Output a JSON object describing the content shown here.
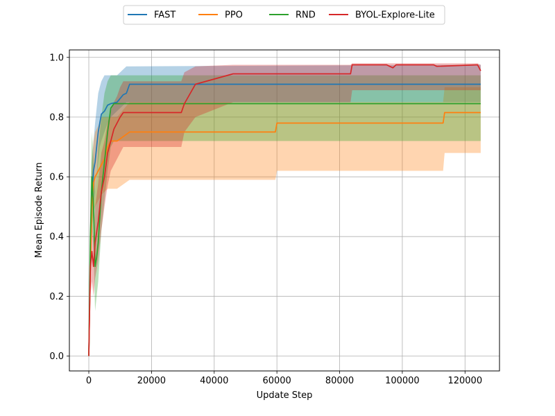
{
  "chart_data": {
    "type": "line",
    "title": "",
    "xlabel": "Update Step",
    "ylabel": "Mean Episode Return",
    "xlim": [
      -6200,
      131000
    ],
    "ylim": [
      -0.05,
      1.025
    ],
    "xticks": [
      0,
      20000,
      40000,
      60000,
      80000,
      100000,
      120000
    ],
    "xtick_labels": [
      "0",
      "20000",
      "40000",
      "60000",
      "80000",
      "100000",
      "120000"
    ],
    "yticks": [
      0.0,
      0.2,
      0.4,
      0.6,
      0.8,
      1.0
    ],
    "ytick_labels": [
      "0.0",
      "0.2",
      "0.4",
      "0.6",
      "0.8",
      "1.0"
    ],
    "grid": true,
    "legend_placement": "top-center",
    "series": [
      {
        "name": "FAST",
        "color": "#1f77b4",
        "x": [
          0,
          500,
          1000,
          1500,
          2000,
          2500,
          3000,
          3500,
          4000,
          5000,
          6000,
          7000,
          9000,
          11000,
          12000,
          13000,
          125000
        ],
        "y": [
          0.0,
          0.33,
          0.55,
          0.62,
          0.65,
          0.7,
          0.75,
          0.78,
          0.81,
          0.82,
          0.84,
          0.845,
          0.85,
          0.875,
          0.88,
          0.91,
          0.91
        ],
        "lower": [
          0.0,
          0.22,
          0.43,
          0.5,
          0.55,
          0.6,
          0.65,
          0.7,
          0.72,
          0.75,
          0.78,
          0.8,
          0.82,
          0.84,
          0.85,
          0.85,
          0.85
        ],
        "upper": [
          0.0,
          0.45,
          0.65,
          0.72,
          0.78,
          0.83,
          0.88,
          0.9,
          0.92,
          0.94,
          0.94,
          0.94,
          0.94,
          0.96,
          0.97,
          0.97,
          0.975
        ]
      },
      {
        "name": "PPO",
        "color": "#ff7f0e",
        "x": [
          0,
          500,
          1000,
          1500,
          2000,
          3000,
          4000,
          5000,
          6000,
          7000,
          9000,
          13000,
          30000,
          59500,
          60000,
          113000,
          113500,
          125000
        ],
        "y": [
          0.0,
          0.3,
          0.5,
          0.58,
          0.6,
          0.62,
          0.64,
          0.66,
          0.7,
          0.72,
          0.72,
          0.75,
          0.75,
          0.75,
          0.78,
          0.78,
          0.815,
          0.815
        ],
        "lower": [
          0.0,
          0.2,
          0.4,
          0.48,
          0.5,
          0.52,
          0.54,
          0.55,
          0.56,
          0.56,
          0.56,
          0.59,
          0.59,
          0.59,
          0.62,
          0.62,
          0.68,
          0.68
        ],
        "upper": [
          0.0,
          0.45,
          0.65,
          0.72,
          0.75,
          0.77,
          0.8,
          0.8,
          0.8,
          0.8,
          0.8,
          0.85,
          0.85,
          0.85,
          0.85,
          0.85,
          0.9,
          0.9
        ]
      },
      {
        "name": "RND",
        "color": "#2ca02c",
        "x": [
          0,
          500,
          1000,
          1500,
          2000,
          2500,
          3000,
          4000,
          5000,
          6000,
          7000,
          8000,
          30000,
          125000
        ],
        "y": [
          0.0,
          0.4,
          0.6,
          0.5,
          0.3,
          0.33,
          0.38,
          0.55,
          0.65,
          0.75,
          0.83,
          0.845,
          0.845,
          0.845
        ],
        "lower": [
          0.0,
          0.25,
          0.45,
          0.35,
          0.15,
          0.2,
          0.25,
          0.42,
          0.52,
          0.62,
          0.7,
          0.72,
          0.72,
          0.72
        ],
        "upper": [
          0.0,
          0.55,
          0.75,
          0.65,
          0.55,
          0.6,
          0.7,
          0.8,
          0.88,
          0.92,
          0.94,
          0.94,
          0.94,
          0.94
        ]
      },
      {
        "name": "BYOL-Explore-Lite",
        "color": "#d62728",
        "x": [
          0,
          500,
          1000,
          1500,
          2000,
          3000,
          4000,
          5000,
          6000,
          7000,
          8000,
          9000,
          10000,
          11000,
          29500,
          30500,
          34000,
          46000,
          83500,
          84000,
          95000,
          96000,
          97000,
          98000,
          110000,
          111000,
          124000,
          125000
        ],
        "y": [
          0.0,
          0.3,
          0.35,
          0.3,
          0.38,
          0.45,
          0.55,
          0.6,
          0.68,
          0.72,
          0.76,
          0.78,
          0.8,
          0.815,
          0.815,
          0.845,
          0.91,
          0.945,
          0.945,
          0.975,
          0.975,
          0.97,
          0.965,
          0.975,
          0.975,
          0.97,
          0.975,
          0.955
        ],
        "lower": [
          0.0,
          0.2,
          0.25,
          0.2,
          0.26,
          0.32,
          0.42,
          0.5,
          0.57,
          0.62,
          0.64,
          0.66,
          0.68,
          0.7,
          0.7,
          0.75,
          0.8,
          0.85,
          0.85,
          0.89,
          0.89,
          0.89,
          0.89,
          0.89,
          0.89,
          0.89,
          0.89,
          0.89
        ],
        "upper": [
          0.0,
          0.42,
          0.45,
          0.4,
          0.5,
          0.58,
          0.68,
          0.72,
          0.78,
          0.82,
          0.85,
          0.87,
          0.9,
          0.92,
          0.92,
          0.95,
          0.97,
          0.975,
          0.975,
          0.98,
          0.98,
          0.98,
          0.98,
          0.98,
          0.98,
          0.98,
          0.98,
          0.975
        ]
      }
    ]
  }
}
